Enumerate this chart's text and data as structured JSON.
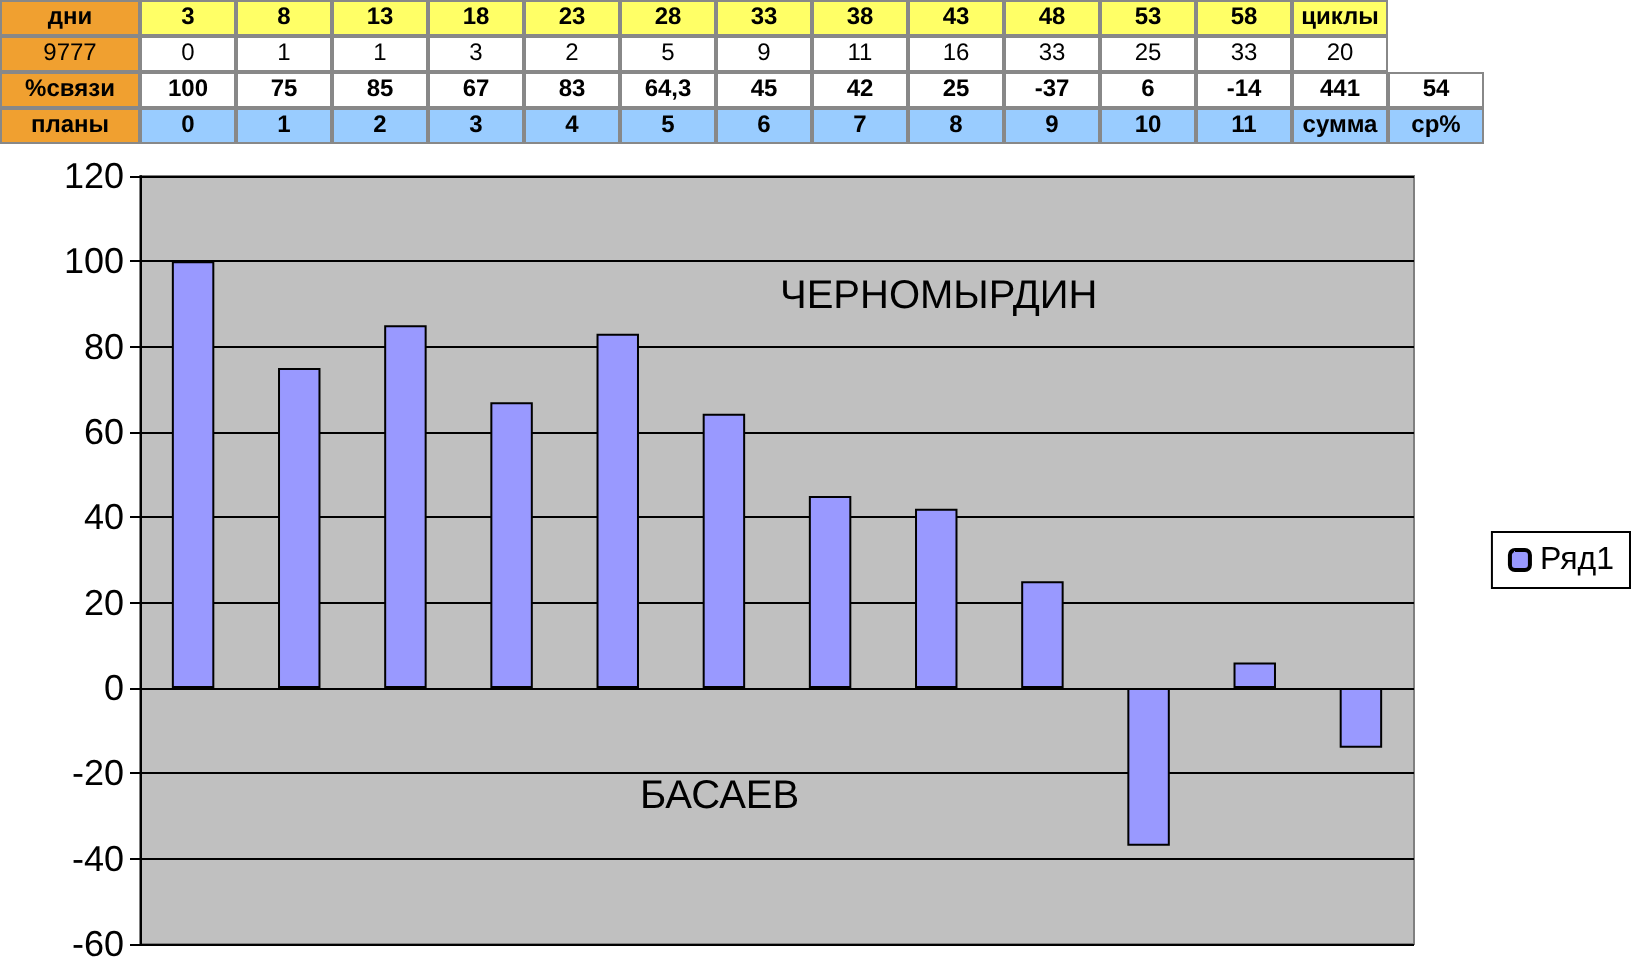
{
  "chart_data": {
    "type": "bar",
    "categories": [
      null,
      null,
      null,
      null,
      null,
      null,
      null,
      null,
      null,
      null,
      null,
      null
    ],
    "series": [
      {
        "name": "Ряд1",
        "color": "#9999ff",
        "values": [
          100,
          75,
          85,
          67,
          83,
          64.3,
          45,
          42,
          25,
          -37,
          6,
          -14
        ]
      }
    ],
    "ylim": [
      -60,
      120
    ],
    "yticks": [
      -60,
      -40,
      -20,
      0,
      20,
      40,
      60,
      80,
      100,
      120
    ],
    "grid": "y",
    "legend": "right",
    "annotations": [
      "дни 3 8 13 18 23 28 33 38 43 48 53 58 циклы",
      "9777 0 1 1 3 2 5 9 11 16 33 25 33 20",
      "%связи 100 75 85 67 83 64,3 45 42 25 -37 6 -14 441 54",
      "планы 0 1 2 3 4 5 6 7 8 9 10 11 сумма ср%",
      "ЧЕРНОМЫРДИН",
      "БАСАЕВ"
    ]
  }
}
